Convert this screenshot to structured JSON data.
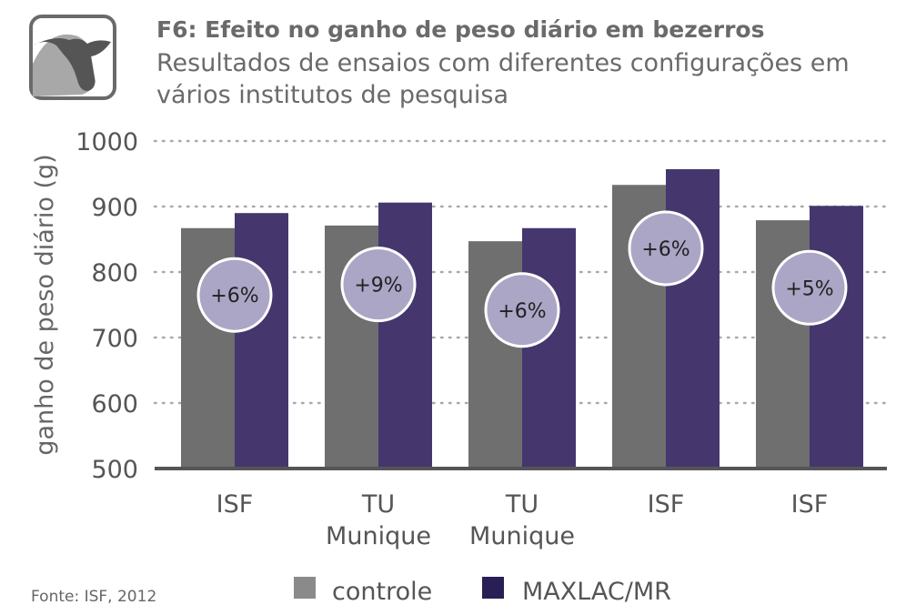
{
  "chart_data": {
    "type": "bar",
    "title": "F6: Efeito no ganho de peso diário em bezerros",
    "subtitle": [
      "Resultados de ensaios com diferentes configurações em",
      "vários institutos de pesquisa"
    ],
    "ylabel": "ganho de peso diário (g)",
    "xlabel": "",
    "ylim": [
      500,
      1000
    ],
    "yticks": [
      500,
      600,
      700,
      800,
      900,
      1000
    ],
    "grid": "horizontal dotted",
    "categories": [
      [
        "ISF"
      ],
      [
        "TU",
        "Munique"
      ],
      [
        "TU",
        "Munique"
      ],
      [
        "ISF"
      ],
      [
        "ISF"
      ]
    ],
    "series": [
      {
        "name": "controle",
        "color": "#6f6f6f",
        "values": [
          867,
          871,
          847,
          933,
          879
        ]
      },
      {
        "name": "MAXLAC/MR",
        "color": "#45366e",
        "values": [
          890,
          906,
          867,
          957,
          901
        ]
      }
    ],
    "annotations": [
      "+6%",
      "+9%",
      "+6%",
      "+6%",
      "+5%"
    ],
    "annotation_color": "#aba5c6",
    "legend_position": "bottom",
    "source": "Fonte: ISF, 2012"
  },
  "icon": "cow-icon"
}
